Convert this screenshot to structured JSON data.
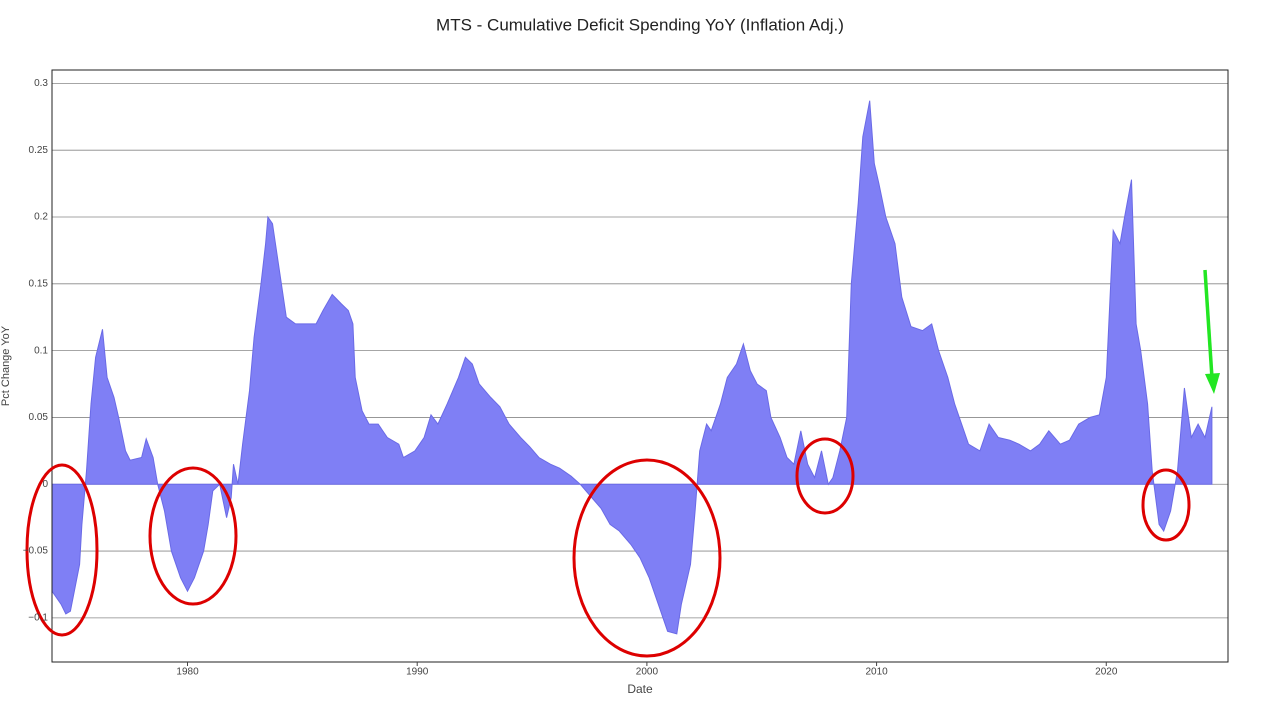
{
  "chart_data": {
    "type": "area",
    "title": "MTS - Cumulative Deficit Spending YoY (Inflation Adj.)",
    "x_label": "Date",
    "y_label": "Pct Change YoY",
    "color": "#7f7ff5",
    "grid": true,
    "xlim": [
      1974.1,
      2025.3
    ],
    "xticks": [
      1980,
      1990,
      2000,
      2010,
      2020
    ],
    "ylim": [
      -0.133,
      0.31
    ],
    "yticks": [
      {
        "value": -0.1,
        "label": "−0.1"
      },
      {
        "value": -0.05,
        "label": "−0.05"
      },
      0,
      0.05,
      0.1,
      0.15,
      0.2,
      0.25,
      0.3
    ],
    "x": [
      1974.1,
      1974.5,
      1974.7,
      1974.9,
      1975.3,
      1975.4,
      1975.6,
      1975.8,
      1976.0,
      1976.3,
      1976.5,
      1976.8,
      1977.0,
      1977.3,
      1977.5,
      1978.0,
      1978.2,
      1978.5,
      1978.7,
      1979.0,
      1979.3,
      1979.7,
      1980.0,
      1980.3,
      1980.7,
      1980.9,
      1981.1,
      1981.4,
      1981.7,
      1981.9,
      1982.0,
      1982.2,
      1982.4,
      1982.7,
      1982.9,
      1983.2,
      1983.4,
      1983.5,
      1983.7,
      1984.0,
      1984.3,
      1984.7,
      1985.1,
      1985.6,
      1985.9,
      1986.3,
      1986.7,
      1987.0,
      1987.2,
      1987.3,
      1987.6,
      1987.9,
      1988.3,
      1988.7,
      1989.2,
      1989.4,
      1989.9,
      1990.3,
      1990.6,
      1990.9,
      1991.3,
      1991.8,
      1992.1,
      1992.4,
      1992.7,
      1993.2,
      1993.6,
      1994.0,
      1994.5,
      1994.9,
      1995.3,
      1995.8,
      1996.2,
      1996.7,
      1997.1,
      1997.5,
      1998.0,
      1998.4,
      1998.8,
      1999.3,
      1999.7,
      2000.1,
      2000.6,
      2000.9,
      2001.3,
      2001.5,
      2001.9,
      2002.1,
      2002.3,
      2002.6,
      2002.8,
      2003.2,
      2003.5,
      2003.9,
      2004.2,
      2004.5,
      2004.8,
      2005.2,
      2005.4,
      2005.8,
      2006.1,
      2006.4,
      2006.7,
      2007.0,
      2007.3,
      2007.6,
      2007.9,
      2008.1,
      2008.4,
      2008.7,
      2008.9,
      2009.2,
      2009.4,
      2009.7,
      2009.9,
      2010.1,
      2010.4,
      2010.8,
      2011.1,
      2011.5,
      2012.0,
      2012.4,
      2012.7,
      2013.1,
      2013.4,
      2013.7,
      2014.0,
      2014.5,
      2014.9,
      2015.3,
      2015.8,
      2016.2,
      2016.7,
      2017.1,
      2017.5,
      2018.0,
      2018.4,
      2018.8,
      2019.3,
      2019.7,
      2020.0,
      2020.3,
      2020.6,
      2020.8,
      2021.1,
      2021.3,
      2021.5,
      2021.8,
      2022.0,
      2022.3,
      2022.5,
      2022.8,
      2023.1,
      2023.4,
      2023.7,
      2024.0,
      2024.3,
      2024.6
    ],
    "values": [
      -0.08,
      -0.09,
      -0.097,
      -0.095,
      -0.06,
      -0.03,
      0.01,
      0.06,
      0.095,
      0.116,
      0.08,
      0.065,
      0.05,
      0.025,
      0.018,
      0.02,
      0.034,
      0.02,
      0.0,
      -0.02,
      -0.05,
      -0.07,
      -0.08,
      -0.07,
      -0.05,
      -0.03,
      -0.005,
      0.0,
      -0.025,
      -0.01,
      0.015,
      0.0,
      0.03,
      0.07,
      0.11,
      0.15,
      0.18,
      0.2,
      0.195,
      0.16,
      0.125,
      0.12,
      0.12,
      0.12,
      0.13,
      0.142,
      0.135,
      0.13,
      0.12,
      0.08,
      0.055,
      0.045,
      0.045,
      0.035,
      0.03,
      0.02,
      0.025,
      0.035,
      0.052,
      0.045,
      0.06,
      0.08,
      0.095,
      0.09,
      0.075,
      0.065,
      0.058,
      0.045,
      0.035,
      0.028,
      0.02,
      0.015,
      0.012,
      0.006,
      0.0,
      -0.008,
      -0.018,
      -0.03,
      -0.035,
      -0.045,
      -0.055,
      -0.07,
      -0.095,
      -0.11,
      -0.112,
      -0.09,
      -0.06,
      -0.02,
      0.025,
      0.045,
      0.04,
      0.06,
      0.08,
      0.09,
      0.105,
      0.085,
      0.075,
      0.07,
      0.05,
      0.035,
      0.02,
      0.015,
      0.04,
      0.015,
      0.005,
      0.025,
      0.0,
      0.005,
      0.025,
      0.05,
      0.15,
      0.21,
      0.26,
      0.287,
      0.24,
      0.225,
      0.2,
      0.18,
      0.14,
      0.118,
      0.115,
      0.12,
      0.1,
      0.08,
      0.06,
      0.045,
      0.03,
      0.025,
      0.045,
      0.035,
      0.033,
      0.03,
      0.025,
      0.03,
      0.04,
      0.03,
      0.033,
      0.045,
      0.05,
      0.052,
      0.08,
      0.19,
      0.18,
      0.2,
      0.228,
      0.12,
      0.1,
      0.06,
      0.01,
      -0.03,
      -0.035,
      -0.02,
      0.01,
      0.072,
      0.035,
      0.045,
      0.035,
      0.058
    ]
  }
}
